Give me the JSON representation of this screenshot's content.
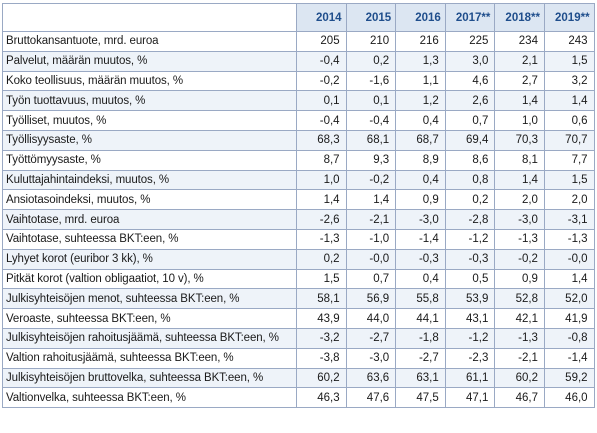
{
  "table": {
    "columns": [
      "",
      "2014",
      "2015",
      "2016",
      "2017**",
      "2018**",
      "2019**"
    ],
    "rows": [
      {
        "label": "Bruttokansantuote, mrd. euroa",
        "values": [
          "205",
          "210",
          "216",
          "225",
          "234",
          "243"
        ]
      },
      {
        "label": "Palvelut, määrän muutos, %",
        "values": [
          "-0,4",
          "0,2",
          "1,3",
          "3,0",
          "2,1",
          "1,5"
        ]
      },
      {
        "label": "Koko teollisuus, määrän muutos, %",
        "values": [
          "-0,2",
          "-1,6",
          "1,1",
          "4,6",
          "2,7",
          "3,2"
        ]
      },
      {
        "label": "Työn tuottavuus, muutos, %",
        "values": [
          "0,1",
          "0,1",
          "1,2",
          "2,6",
          "1,4",
          "1,4"
        ]
      },
      {
        "label": "Työlliset, muutos, %",
        "values": [
          "-0,4",
          "-0,4",
          "0,4",
          "0,7",
          "1,0",
          "0,6"
        ]
      },
      {
        "label": "Työllisyysaste, %",
        "values": [
          "68,3",
          "68,1",
          "68,7",
          "69,4",
          "70,3",
          "70,7"
        ]
      },
      {
        "label": "Työttömyysaste, %",
        "values": [
          "8,7",
          "9,3",
          "8,9",
          "8,6",
          "8,1",
          "7,7"
        ]
      },
      {
        "label": "Kuluttajahintaindeksi, muutos, %",
        "values": [
          "1,0",
          "-0,2",
          "0,4",
          "0,8",
          "1,4",
          "1,5"
        ]
      },
      {
        "label": "Ansiotasoindeksi, muutos, %",
        "values": [
          "1,4",
          "1,4",
          "0,9",
          "0,2",
          "2,0",
          "2,0"
        ]
      },
      {
        "label": "Vaihtotase, mrd. euroa",
        "values": [
          "-2,6",
          "-2,1",
          "-3,0",
          "-2,8",
          "-3,0",
          "-3,1"
        ]
      },
      {
        "label": "Vaihtotase, suhteessa BKT:een, %",
        "values": [
          "-1,3",
          "-1,0",
          "-1,4",
          "-1,2",
          "-1,3",
          "-1,3"
        ]
      },
      {
        "label": "Lyhyet korot (euribor 3 kk), %",
        "values": [
          "0,2",
          "-0,0",
          "-0,3",
          "-0,3",
          "-0,2",
          "-0,0"
        ]
      },
      {
        "label": "Pitkät korot (valtion obligaatiot, 10 v), %",
        "values": [
          "1,5",
          "0,7",
          "0,4",
          "0,5",
          "0,9",
          "1,4"
        ]
      },
      {
        "label": "Julkisyhteisöjen menot, suhteessa BKT:een, %",
        "values": [
          "58,1",
          "56,9",
          "55,8",
          "53,9",
          "52,8",
          "52,0"
        ]
      },
      {
        "label": "Veroaste, suhteessa BKT:een, %",
        "values": [
          "43,9",
          "44,0",
          "44,1",
          "43,1",
          "42,1",
          "41,9"
        ]
      },
      {
        "label": "Julkisyhteisöjen rahoitusjäämä, suhteessa BKT:een, %",
        "values": [
          "-3,2",
          "-2,7",
          "-1,8",
          "-1,2",
          "-1,3",
          "-0,8"
        ]
      },
      {
        "label": "Valtion rahoitusjäämä, suhteessa BKT:een, %",
        "values": [
          "-3,8",
          "-3,0",
          "-2,7",
          "-2,3",
          "-2,1",
          "-1,4"
        ]
      },
      {
        "label": "Julkisyhteisöjen bruttovelka, suhteessa BKT:een, %",
        "values": [
          "60,2",
          "63,6",
          "63,1",
          "61,1",
          "60,2",
          "59,2"
        ]
      },
      {
        "label": "Valtionvelka, suhteessa BKT:een, %",
        "values": [
          "46,3",
          "47,6",
          "47,5",
          "47,1",
          "46,7",
          "46,0"
        ]
      }
    ]
  }
}
